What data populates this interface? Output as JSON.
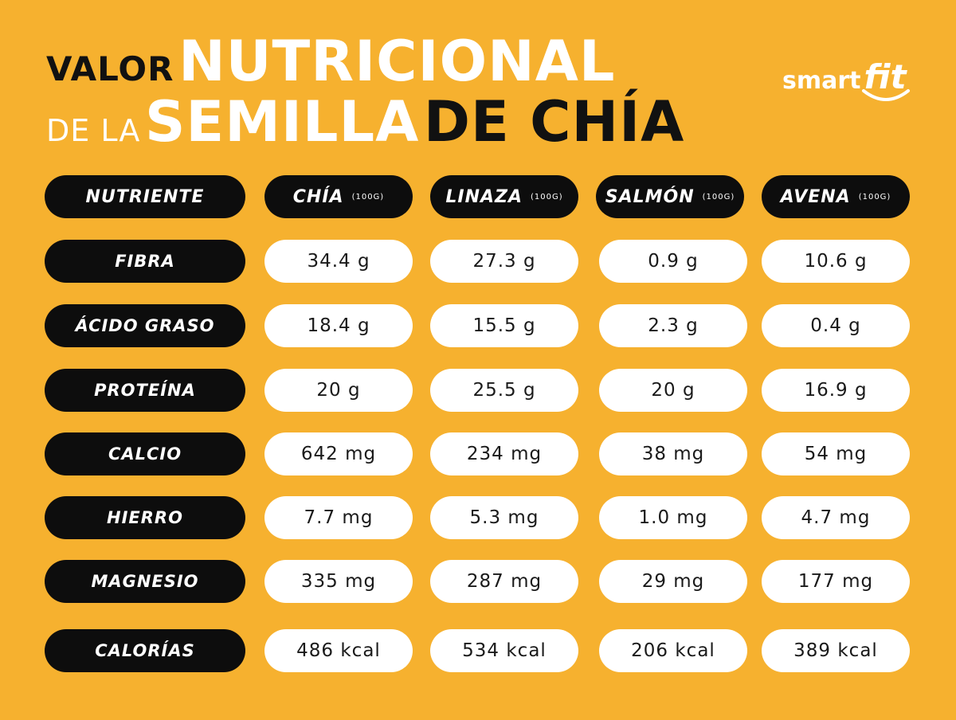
{
  "title": {
    "line1_small": "VALOR",
    "line1_big": "NUTRICIONAL",
    "line2_small": "DE LA",
    "line2_big_white": "SEMILLA",
    "line2_big_black": "DE CHÍA"
  },
  "logo": {
    "smart": "smart",
    "fit": "fit"
  },
  "table": {
    "header": {
      "nutrient": "NUTRIENTE",
      "columns": [
        {
          "name": "CHÍA",
          "unit": "(100G)"
        },
        {
          "name": "LINAZA",
          "unit": "(100G)"
        },
        {
          "name": "SALMÓN",
          "unit": "(100G)"
        },
        {
          "name": "AVENA",
          "unit": "(100G)"
        }
      ]
    },
    "rows": [
      {
        "label": "FIBRA",
        "values": [
          "34.4 g",
          "27.3 g",
          "0.9 g",
          "10.6 g"
        ]
      },
      {
        "label": "ÁCIDO GRASO",
        "values": [
          "18.4 g",
          "15.5 g",
          "2.3 g",
          "0.4 g"
        ]
      },
      {
        "label": "PROTEÍNA",
        "values": [
          "20 g",
          "25.5 g",
          "20 g",
          "16.9 g"
        ]
      },
      {
        "label": "CALCIO",
        "values": [
          "642 mg",
          "234 mg",
          "38 mg",
          "54 mg"
        ]
      },
      {
        "label": "HIERRO",
        "values": [
          "7.7 mg",
          "5.3 mg",
          "1.0 mg",
          "4.7 mg"
        ]
      },
      {
        "label": "MAGNESIO",
        "values": [
          "335 mg",
          "287 mg",
          "29 mg",
          "177 mg"
        ]
      },
      {
        "label": "CALORÍAS",
        "values": [
          "486 kcal",
          "534 kcal",
          "206 kcal",
          "389 kcal"
        ]
      }
    ]
  },
  "colors": {
    "background": "#F6B12F",
    "pill_dark": "#0D0D0D",
    "pill_light": "#FFFFFF"
  }
}
